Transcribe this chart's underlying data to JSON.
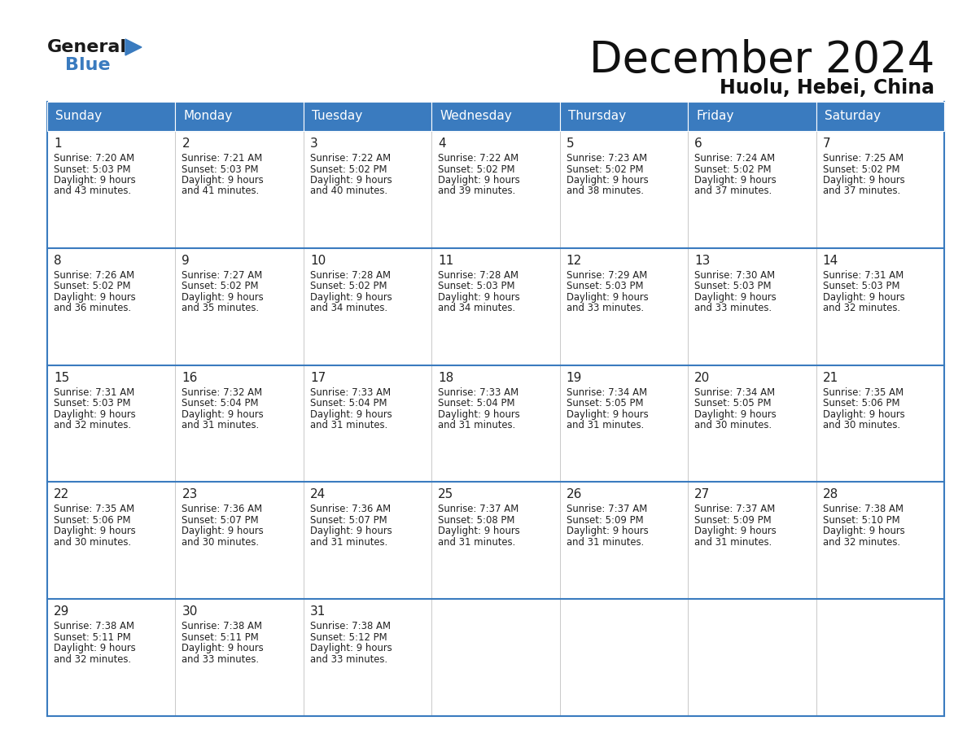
{
  "title": "December 2024",
  "subtitle": "Huolu, Hebei, China",
  "header_bg": "#3a7bbf",
  "header_text_color": "#ffffff",
  "border_color": "#3a7bbf",
  "text_color": "#222222",
  "cell_bg": "#ffffff",
  "days_of_week": [
    "Sunday",
    "Monday",
    "Tuesday",
    "Wednesday",
    "Thursday",
    "Friday",
    "Saturday"
  ],
  "weeks": [
    [
      {
        "day": 1,
        "sunrise": "7:20 AM",
        "sunset": "5:03 PM",
        "daylight": "9 hours and 43 minutes."
      },
      {
        "day": 2,
        "sunrise": "7:21 AM",
        "sunset": "5:03 PM",
        "daylight": "9 hours and 41 minutes."
      },
      {
        "day": 3,
        "sunrise": "7:22 AM",
        "sunset": "5:02 PM",
        "daylight": "9 hours and 40 minutes."
      },
      {
        "day": 4,
        "sunrise": "7:22 AM",
        "sunset": "5:02 PM",
        "daylight": "9 hours and 39 minutes."
      },
      {
        "day": 5,
        "sunrise": "7:23 AM",
        "sunset": "5:02 PM",
        "daylight": "9 hours and 38 minutes."
      },
      {
        "day": 6,
        "sunrise": "7:24 AM",
        "sunset": "5:02 PM",
        "daylight": "9 hours and 37 minutes."
      },
      {
        "day": 7,
        "sunrise": "7:25 AM",
        "sunset": "5:02 PM",
        "daylight": "9 hours and 37 minutes."
      }
    ],
    [
      {
        "day": 8,
        "sunrise": "7:26 AM",
        "sunset": "5:02 PM",
        "daylight": "9 hours and 36 minutes."
      },
      {
        "day": 9,
        "sunrise": "7:27 AM",
        "sunset": "5:02 PM",
        "daylight": "9 hours and 35 minutes."
      },
      {
        "day": 10,
        "sunrise": "7:28 AM",
        "sunset": "5:02 PM",
        "daylight": "9 hours and 34 minutes."
      },
      {
        "day": 11,
        "sunrise": "7:28 AM",
        "sunset": "5:03 PM",
        "daylight": "9 hours and 34 minutes."
      },
      {
        "day": 12,
        "sunrise": "7:29 AM",
        "sunset": "5:03 PM",
        "daylight": "9 hours and 33 minutes."
      },
      {
        "day": 13,
        "sunrise": "7:30 AM",
        "sunset": "5:03 PM",
        "daylight": "9 hours and 33 minutes."
      },
      {
        "day": 14,
        "sunrise": "7:31 AM",
        "sunset": "5:03 PM",
        "daylight": "9 hours and 32 minutes."
      }
    ],
    [
      {
        "day": 15,
        "sunrise": "7:31 AM",
        "sunset": "5:03 PM",
        "daylight": "9 hours and 32 minutes."
      },
      {
        "day": 16,
        "sunrise": "7:32 AM",
        "sunset": "5:04 PM",
        "daylight": "9 hours and 31 minutes."
      },
      {
        "day": 17,
        "sunrise": "7:33 AM",
        "sunset": "5:04 PM",
        "daylight": "9 hours and 31 minutes."
      },
      {
        "day": 18,
        "sunrise": "7:33 AM",
        "sunset": "5:04 PM",
        "daylight": "9 hours and 31 minutes."
      },
      {
        "day": 19,
        "sunrise": "7:34 AM",
        "sunset": "5:05 PM",
        "daylight": "9 hours and 31 minutes."
      },
      {
        "day": 20,
        "sunrise": "7:34 AM",
        "sunset": "5:05 PM",
        "daylight": "9 hours and 30 minutes."
      },
      {
        "day": 21,
        "sunrise": "7:35 AM",
        "sunset": "5:06 PM",
        "daylight": "9 hours and 30 minutes."
      }
    ],
    [
      {
        "day": 22,
        "sunrise": "7:35 AM",
        "sunset": "5:06 PM",
        "daylight": "9 hours and 30 minutes."
      },
      {
        "day": 23,
        "sunrise": "7:36 AM",
        "sunset": "5:07 PM",
        "daylight": "9 hours and 30 minutes."
      },
      {
        "day": 24,
        "sunrise": "7:36 AM",
        "sunset": "5:07 PM",
        "daylight": "9 hours and 31 minutes."
      },
      {
        "day": 25,
        "sunrise": "7:37 AM",
        "sunset": "5:08 PM",
        "daylight": "9 hours and 31 minutes."
      },
      {
        "day": 26,
        "sunrise": "7:37 AM",
        "sunset": "5:09 PM",
        "daylight": "9 hours and 31 minutes."
      },
      {
        "day": 27,
        "sunrise": "7:37 AM",
        "sunset": "5:09 PM",
        "daylight": "9 hours and 31 minutes."
      },
      {
        "day": 28,
        "sunrise": "7:38 AM",
        "sunset": "5:10 PM",
        "daylight": "9 hours and 32 minutes."
      }
    ],
    [
      {
        "day": 29,
        "sunrise": "7:38 AM",
        "sunset": "5:11 PM",
        "daylight": "9 hours and 32 minutes."
      },
      {
        "day": 30,
        "sunrise": "7:38 AM",
        "sunset": "5:11 PM",
        "daylight": "9 hours and 33 minutes."
      },
      {
        "day": 31,
        "sunrise": "7:38 AM",
        "sunset": "5:12 PM",
        "daylight": "9 hours and 33 minutes."
      },
      null,
      null,
      null,
      null
    ]
  ]
}
